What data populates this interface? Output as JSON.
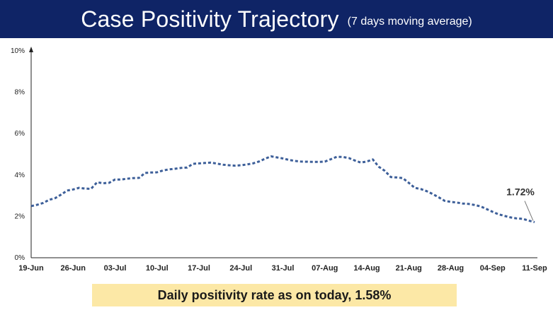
{
  "header": {
    "title": "Case Positivity Trajectory",
    "subtitle": "(7 days moving average)"
  },
  "banner": {
    "text": "Daily positivity rate as on today, 1.58%"
  },
  "colors": {
    "header_bg": "#0f2466",
    "line": "#3d5f99",
    "banner_bg": "#fce8a6"
  },
  "chart_data": {
    "type": "line",
    "title": "Case Positivity Trajectory",
    "subtitle": "(7 days moving average)",
    "xlabel": "",
    "ylabel": "",
    "y_ticks": [
      "0%",
      "2%",
      "4%",
      "6%",
      "8%",
      "10%"
    ],
    "x_ticks": [
      "19-Jun",
      "26-Jun",
      "03-Jul",
      "10-Jul",
      "17-Jul",
      "24-Jul",
      "31-Jul",
      "07-Aug",
      "14-Aug",
      "21-Aug",
      "28-Aug",
      "04-Sep",
      "11-Sep"
    ],
    "ylim": [
      0,
      10
    ],
    "grid": false,
    "line_style": "dashed",
    "annotation": {
      "label": "1.72%",
      "date": "11-Sep",
      "value": 1.72
    },
    "series": [
      {
        "values": [
          2.5,
          2.56,
          2.65,
          2.8,
          2.88,
          3.05,
          3.25,
          3.3,
          3.38,
          3.34,
          3.33,
          3.65,
          3.6,
          3.62,
          3.78,
          3.78,
          3.82,
          3.85,
          3.86,
          4.1,
          4.12,
          4.13,
          4.22,
          4.27,
          4.3,
          4.34,
          4.36,
          4.54,
          4.56,
          4.58,
          4.6,
          4.55,
          4.5,
          4.47,
          4.45,
          4.47,
          4.51,
          4.56,
          4.65,
          4.78,
          4.9,
          4.85,
          4.8,
          4.73,
          4.68,
          4.65,
          4.64,
          4.63,
          4.63,
          4.65,
          4.76,
          4.88,
          4.87,
          4.82,
          4.7,
          4.6,
          4.65,
          4.75,
          4.4,
          4.2,
          3.9,
          3.88,
          3.85,
          3.62,
          3.38,
          3.32,
          3.22,
          3.08,
          2.92,
          2.75,
          2.7,
          2.67,
          2.62,
          2.6,
          2.55,
          2.48,
          2.35,
          2.22,
          2.1,
          2.02,
          1.95,
          1.9,
          1.88,
          1.8,
          1.72
        ]
      }
    ]
  }
}
